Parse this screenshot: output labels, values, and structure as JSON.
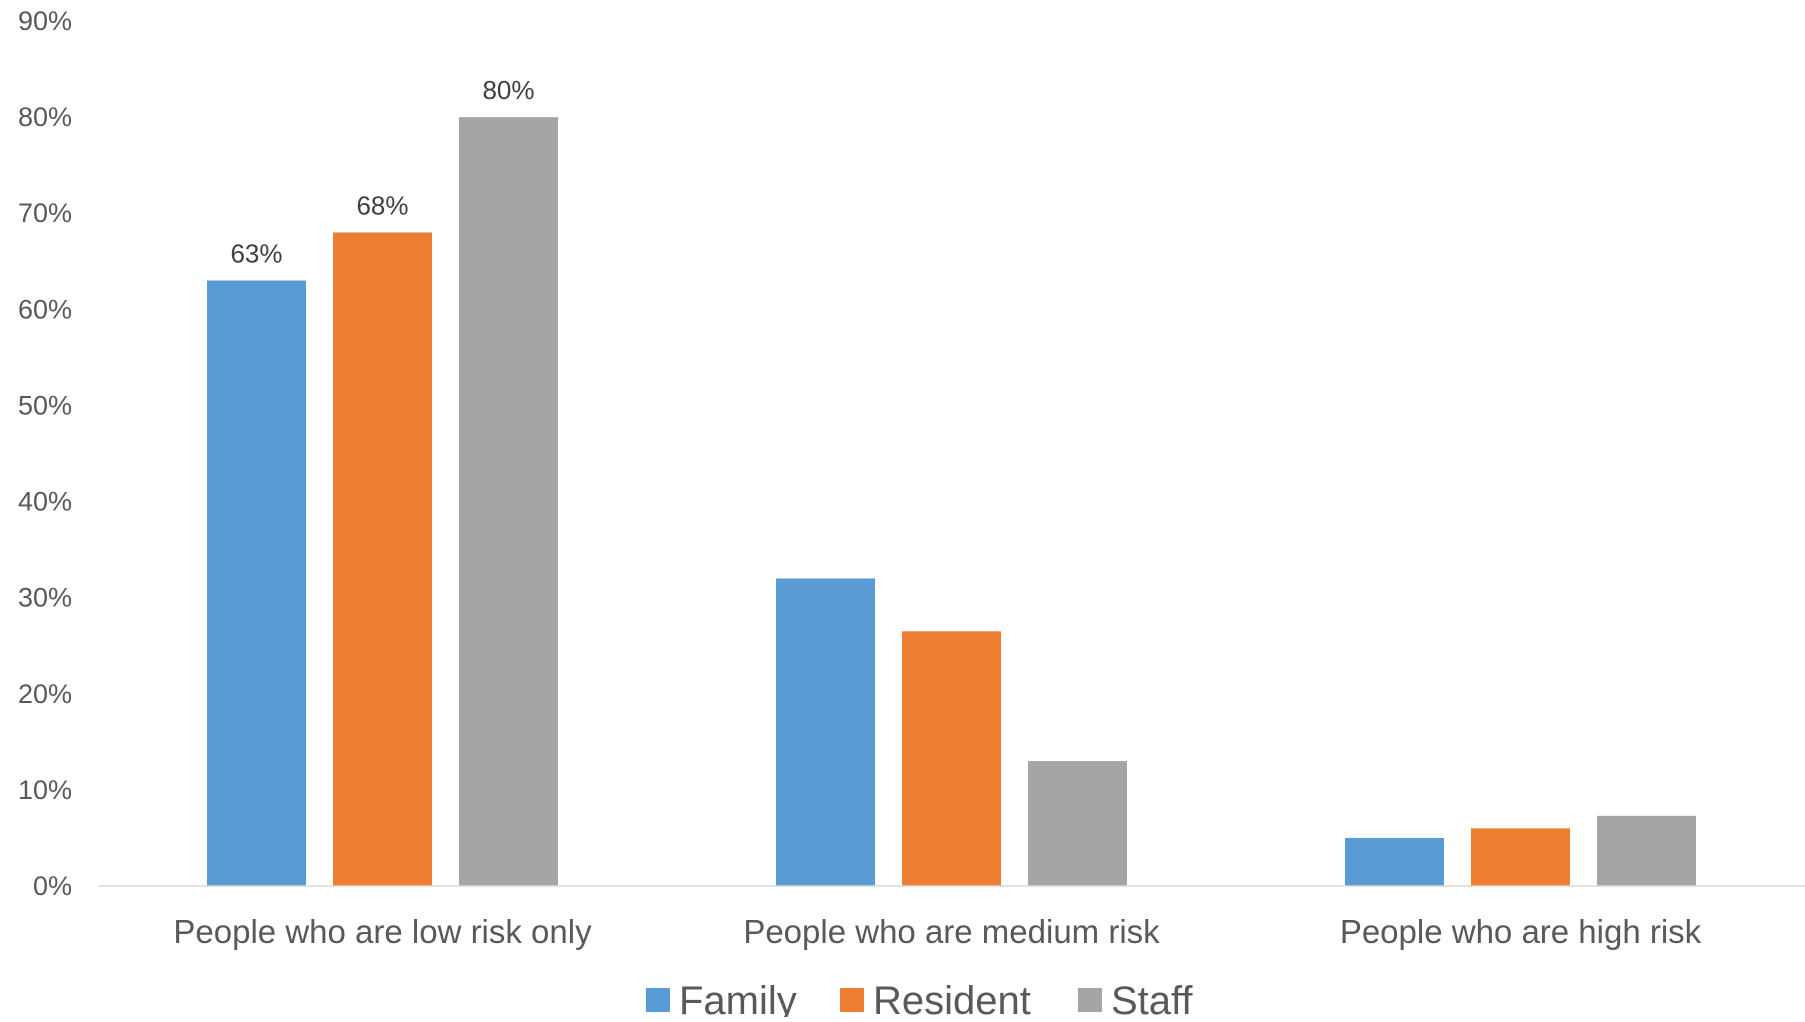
{
  "chart_data": {
    "type": "bar",
    "title": "",
    "xlabel": "",
    "ylabel": "",
    "ylim": [
      0,
      90
    ],
    "y_tick_values": [
      0,
      10,
      20,
      30,
      40,
      50,
      60,
      70,
      80,
      90
    ],
    "y_tick_labels": [
      "0%",
      "10%",
      "20%",
      "30%",
      "40%",
      "50%",
      "60%",
      "70%",
      "80%",
      "90%"
    ],
    "grid": false,
    "legend_position": "bottom",
    "categories": [
      "People who are low risk only",
      "People who are medium risk",
      "People who are high risk"
    ],
    "series": [
      {
        "name": "Family",
        "color": "#5B9BD5",
        "values": [
          63,
          32,
          5
        ],
        "data_labels": [
          "63%",
          null,
          null
        ]
      },
      {
        "name": "Resident",
        "color": "#ED7D31",
        "values": [
          68,
          26.5,
          6
        ],
        "data_labels": [
          "68%",
          null,
          null
        ]
      },
      {
        "name": "Staff",
        "color": "#A5A5A5",
        "values": [
          80,
          13,
          7.3
        ],
        "data_labels": [
          "80%",
          null,
          null
        ]
      }
    ]
  }
}
